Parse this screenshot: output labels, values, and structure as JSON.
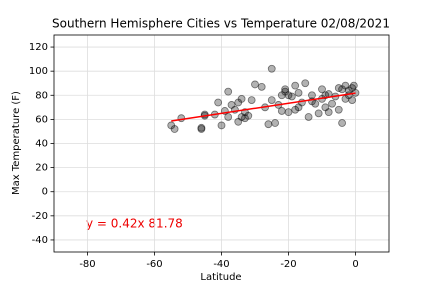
{
  "chart_data": {
    "type": "scatter",
    "title": "Southern Hemisphere Cities vs Temperature 02/08/2021",
    "x_label": "Latitude",
    "y_label": "Max Temperature (F)",
    "annotation": "y = 0.42x 81.78",
    "xlim": [
      -90,
      10
    ],
    "ylim": [
      -50,
      130
    ],
    "xticks": [
      -80,
      -60,
      -40,
      -20,
      0
    ],
    "yticks": [
      -40,
      -20,
      0,
      20,
      40,
      60,
      80,
      100,
      120
    ],
    "grid": true,
    "series": [
      {
        "type": "scatter",
        "color": "#000000",
        "x": [
          -55,
          -54,
          -52,
          -46,
          -46,
          -45,
          -45,
          -42,
          -41,
          -40,
          -39,
          -38,
          -38,
          -37,
          -36,
          -35,
          -35,
          -34,
          -34,
          -33,
          -33,
          -32,
          -31,
          -30,
          -28,
          -27,
          -26,
          -25,
          -25,
          -24,
          -23,
          -22,
          -22,
          -21,
          -21,
          -20,
          -20,
          -19,
          -18,
          -18,
          -17,
          -17,
          -16,
          -15,
          -14,
          -13,
          -13,
          -12,
          -11,
          -10,
          -10,
          -9,
          -9,
          -8,
          -8,
          -7,
          -6,
          -5,
          -5,
          -4,
          -4,
          -3,
          -3,
          -2,
          -2,
          -1,
          -1,
          -0.5,
          0
        ],
        "values": [
          55,
          52,
          61,
          53,
          52,
          63,
          64,
          64,
          74,
          55,
          67,
          83,
          62,
          72,
          68,
          58,
          74,
          62,
          77,
          66,
          61,
          63,
          76,
          89,
          87,
          70,
          56,
          102,
          76,
          57,
          72,
          80,
          67,
          83,
          85,
          66,
          80,
          79,
          88,
          68,
          82,
          70,
          74,
          90,
          62,
          75,
          80,
          73,
          65,
          85,
          77,
          70,
          80,
          66,
          81,
          73,
          79,
          68,
          86,
          57,
          85,
          88,
          77,
          84,
          80,
          86,
          76,
          88,
          82
        ]
      },
      {
        "type": "line",
        "color": "#ff0000",
        "x": [
          -55,
          0
        ],
        "values": [
          58.7,
          81.8
        ]
      }
    ]
  }
}
